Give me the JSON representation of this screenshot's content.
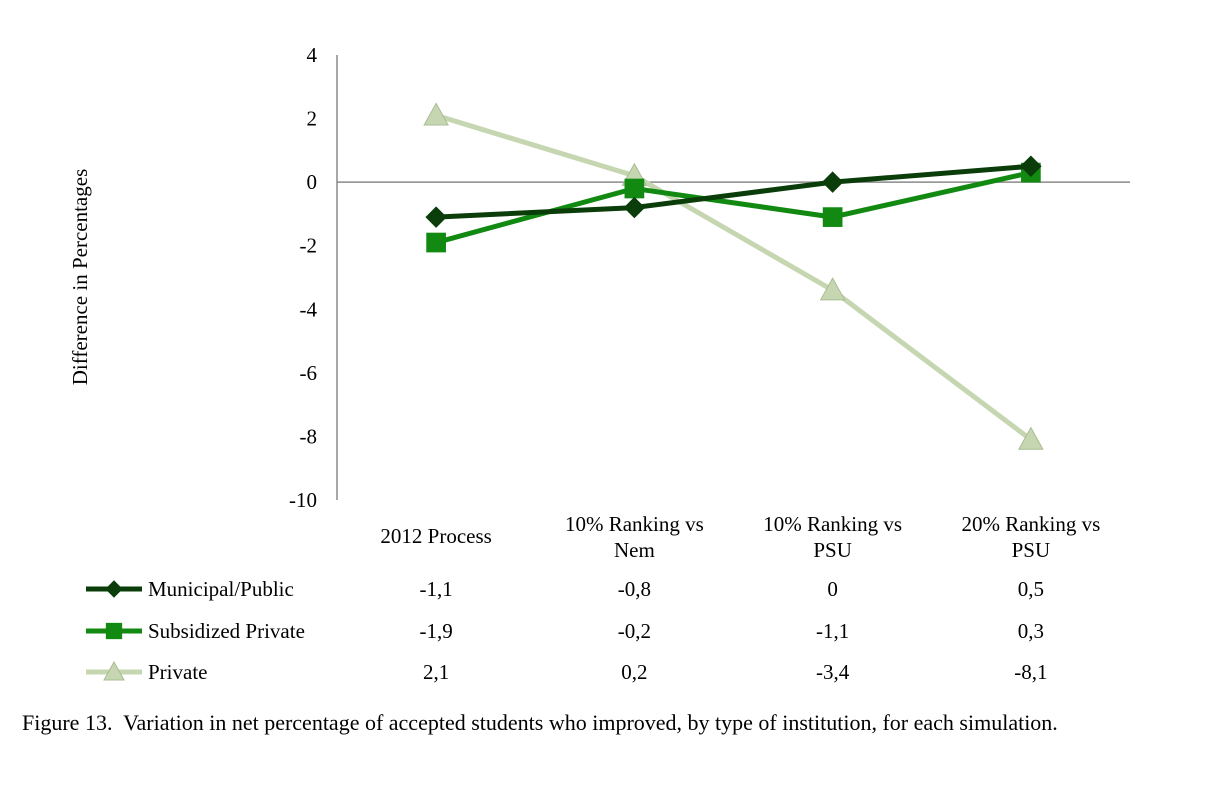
{
  "chart_data": {
    "type": "line",
    "ylabel": "Difference in Percentages",
    "ylim": [
      -10,
      4
    ],
    "yticks": [
      4,
      2,
      0,
      -2,
      -4,
      -6,
      -8,
      -10
    ],
    "ytick_labels": [
      "4",
      "2",
      "0",
      "-2",
      "-4",
      "-6",
      "-8",
      "-10"
    ],
    "categories": [
      [
        "2012 Process"
      ],
      [
        "10% Ranking vs",
        "Nem"
      ],
      [
        "10% Ranking vs",
        "PSU"
      ],
      [
        "20% Ranking vs",
        "PSU"
      ]
    ],
    "series": [
      {
        "name": "Municipal/Public",
        "values": [
          -1.1,
          -0.8,
          0,
          0.5
        ],
        "value_labels": [
          "-1,1",
          "-0,8",
          "0",
          "0,5"
        ],
        "color": "#0a3d0a",
        "marker": "diamond"
      },
      {
        "name": "Subsidized Private",
        "values": [
          -1.9,
          -0.2,
          -1.1,
          0.3
        ],
        "value_labels": [
          "-1,9",
          "-0,2",
          "-1,1",
          "0,3"
        ],
        "color": "#128a12",
        "marker": "square"
      },
      {
        "name": "Private",
        "values": [
          2.1,
          0.2,
          -3.4,
          -8.1
        ],
        "value_labels": [
          "2,1",
          "0,2",
          "-3,4",
          "-8,1"
        ],
        "color": "#c5d6b0",
        "marker": "triangle"
      }
    ],
    "data_table": true,
    "grid": false
  },
  "caption": {
    "label": "Figure 13.",
    "text": "Variation in net percentage of accepted students who improved, by type of institution, for each simulation."
  }
}
